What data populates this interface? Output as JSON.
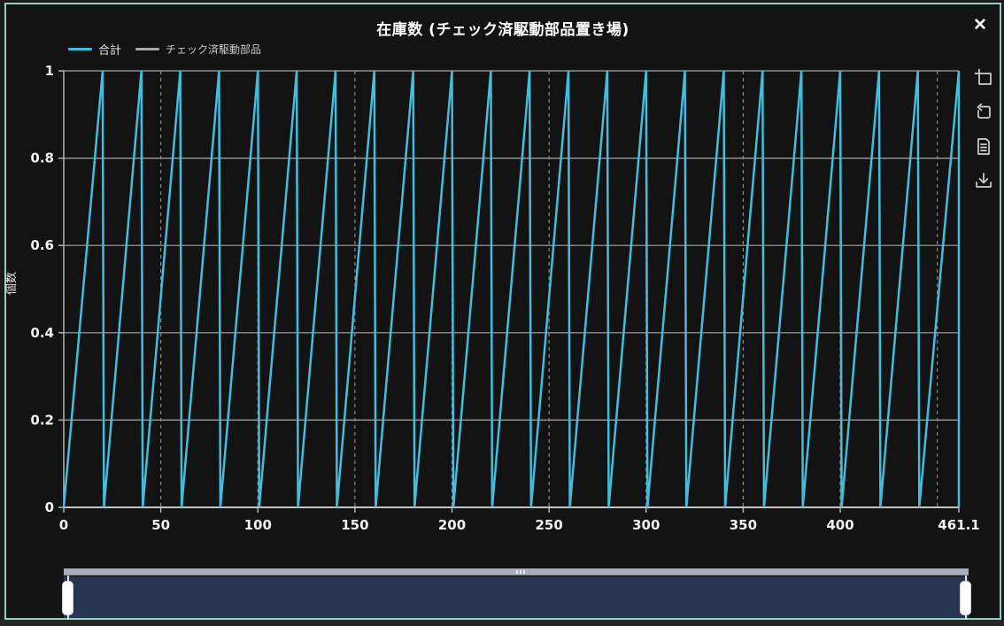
{
  "window": {
    "title": "在庫数 (チェック済駆動部品置き場)",
    "close_glyph": "✕"
  },
  "toolbar": {
    "buttons": [
      {
        "name": "box-zoom",
        "icon": "box-zoom-icon"
      },
      {
        "name": "reset-zoom",
        "icon": "reset-zoom-icon"
      },
      {
        "name": "export-data",
        "icon": "document-icon"
      },
      {
        "name": "download",
        "icon": "download-icon"
      }
    ]
  },
  "colors": {
    "accent_cyan": "#43bcdd",
    "series2_gray": "#c3c3c3",
    "border_teal": "#8fd0c5",
    "background": "#131313",
    "hgrid": "#a8a8a8",
    "vgrid": "#8a8a8a",
    "axis": "#b2b2b2",
    "tick_text": "#f2f2f2",
    "scrollbar_track": "#a6adbc",
    "scrollbar_body": "#273650"
  },
  "chart_data": {
    "type": "line",
    "title": "在庫数 (チェック済駆動部品置き場)",
    "xlabel": "",
    "ylabel": "個数",
    "xlim": [
      0,
      461.1
    ],
    "ylim": [
      0,
      1
    ],
    "xticks": [
      0,
      50,
      100,
      150,
      200,
      250,
      300,
      350,
      400,
      461.1
    ],
    "xtick_labels": [
      "0",
      "50",
      "100",
      "150",
      "200",
      "250",
      "300",
      "350",
      "400",
      "461.1"
    ],
    "yticks": [
      0,
      0.2,
      0.4,
      0.6,
      0.8,
      1
    ],
    "ytick_labels": [
      "0",
      "0.2",
      "0.4",
      "0.6",
      "0.8",
      "1"
    ],
    "grid": {
      "horizontal_style": "solid",
      "vertical_style": "dashed",
      "vertical_positions": [
        50,
        100,
        150,
        200,
        250,
        300,
        350,
        400,
        450
      ]
    },
    "legend_position": "top-left",
    "series": [
      {
        "name": "合計",
        "color": "#43bcdd",
        "pattern": "sawtooth (period 20, rises 0→1 then instant drop)",
        "points": [
          [
            0,
            0
          ],
          [
            20,
            1
          ],
          [
            20.7,
            0
          ],
          [
            40,
            1
          ],
          [
            40.7,
            0
          ],
          [
            60,
            1
          ],
          [
            60.7,
            0
          ],
          [
            80,
            1
          ],
          [
            80.7,
            0
          ],
          [
            100,
            1
          ],
          [
            100.7,
            0
          ],
          [
            120,
            1
          ],
          [
            120.7,
            0
          ],
          [
            140,
            1
          ],
          [
            140.7,
            0
          ],
          [
            160,
            1
          ],
          [
            160.7,
            0
          ],
          [
            180,
            1
          ],
          [
            180.7,
            0
          ],
          [
            200,
            1
          ],
          [
            200.7,
            0
          ],
          [
            220,
            1
          ],
          [
            220.7,
            0
          ],
          [
            240,
            1
          ],
          [
            240.7,
            0
          ],
          [
            260,
            1
          ],
          [
            260.7,
            0
          ],
          [
            280,
            1
          ],
          [
            280.7,
            0
          ],
          [
            300,
            1
          ],
          [
            300.7,
            0
          ],
          [
            320,
            1
          ],
          [
            320.7,
            0
          ],
          [
            340,
            1
          ],
          [
            340.7,
            0
          ],
          [
            360,
            1
          ],
          [
            360.7,
            0
          ],
          [
            380,
            1
          ],
          [
            380.7,
            0
          ],
          [
            400,
            1
          ],
          [
            400.7,
            0
          ],
          [
            420,
            1
          ],
          [
            420.7,
            0
          ],
          [
            440,
            1
          ],
          [
            440.7,
            0
          ],
          [
            461.1,
            1
          ],
          [
            461.1,
            0
          ]
        ]
      },
      {
        "name": "チェック済駆動部品",
        "color": "#c3c3c3",
        "pattern": "constant zero",
        "points": [
          [
            0,
            0
          ],
          [
            461.1,
            0
          ]
        ]
      }
    ]
  }
}
